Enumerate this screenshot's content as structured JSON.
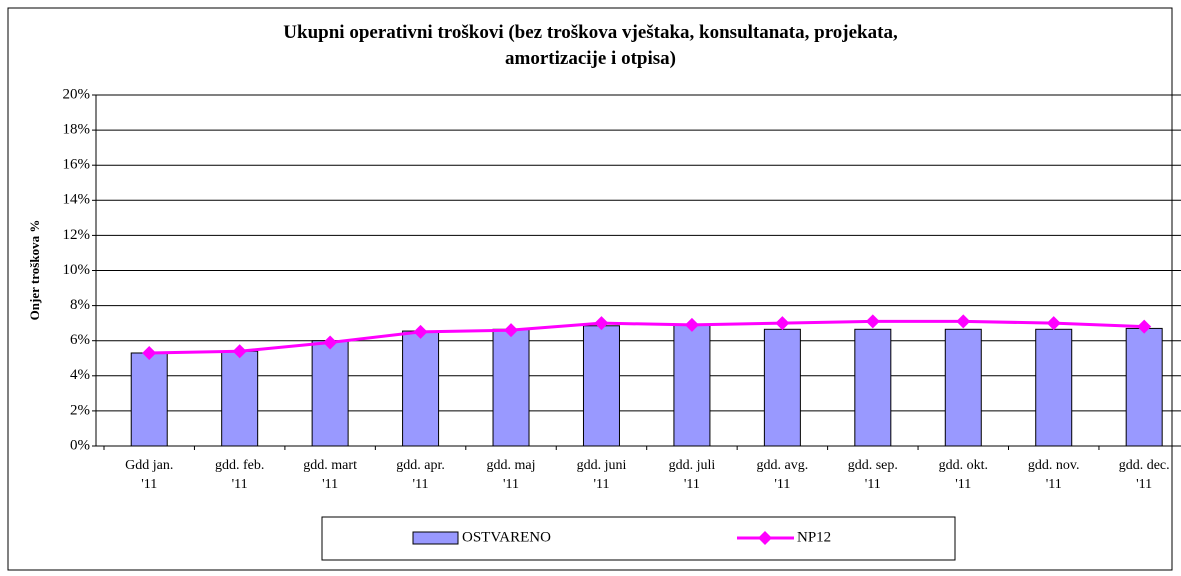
{
  "chart_data": {
    "type": "bar",
    "title": "Ukupni operativni troškovi (bez troškova vještaka, konsultanata, projekata,\namortizacije i otpisa)",
    "y_label": "Onjer troškova %",
    "categories": [
      "Gdd jan.\n'11",
      "gdd. feb.\n'11",
      "gdd. mart\n'11",
      "gdd. apr.\n'11",
      "gdd. maj\n'11",
      "gdd. juni\n'11",
      "gdd. juli\n'11",
      "gdd. avg.\n'11",
      "gdd. sep.\n'11",
      "gdd. okt.\n'11",
      "gdd. nov.\n'11",
      "gdd. dec.\n'11"
    ],
    "series": [
      {
        "name": "OSTVARENO",
        "type": "bar",
        "color": "#9999ff",
        "values": [
          5.3,
          5.4,
          6.0,
          6.55,
          6.65,
          6.85,
          6.9,
          6.65,
          6.65,
          6.65,
          6.65,
          6.7
        ]
      },
      {
        "name": "NP12",
        "type": "line",
        "color": "#ff00ff",
        "values": [
          5.3,
          5.4,
          5.9,
          6.5,
          6.6,
          7.0,
          6.9,
          7.0,
          7.1,
          7.1,
          7.0,
          6.8
        ]
      }
    ],
    "ylim": [
      0,
      20
    ],
    "yticks": [
      {
        "value": 0,
        "label": "0%"
      },
      {
        "value": 2,
        "label": "2%"
      },
      {
        "value": 4,
        "label": "4%"
      },
      {
        "value": 6,
        "label": "6%"
      },
      {
        "value": 8,
        "label": "8%"
      },
      {
        "value": 10,
        "label": "10%"
      },
      {
        "value": 12,
        "label": "12%"
      },
      {
        "value": 14,
        "label": "14%"
      },
      {
        "value": 16,
        "label": "16%"
      },
      {
        "value": 18,
        "label": "18%"
      },
      {
        "value": 20,
        "label": "20%"
      }
    ],
    "grid": true,
    "legend": "bottom"
  }
}
